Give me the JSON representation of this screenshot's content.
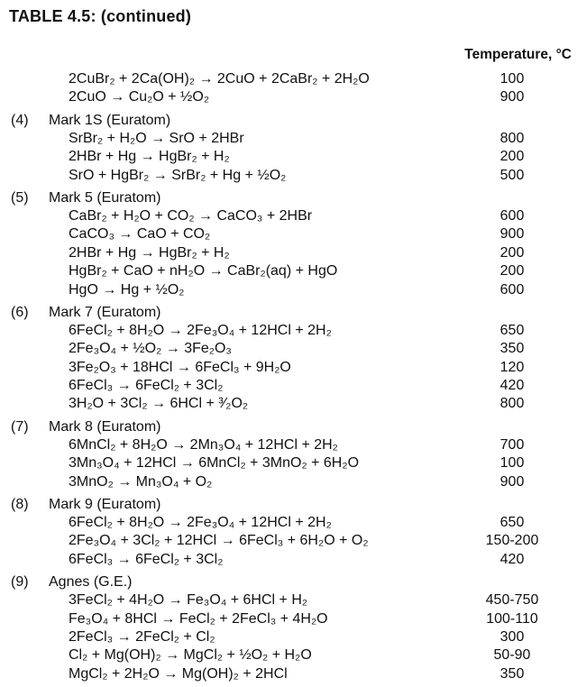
{
  "title": "TABLE 4.5:  (continued)",
  "column_header": "Temperature, °C",
  "groups": [
    {
      "number": "",
      "name": "",
      "rows": [
        {
          "reaction": "2CuBr₂ + 2Ca(OH)₂ → 2CuO + 2CaBr₂ + 2H₂O",
          "temperature": "100"
        },
        {
          "reaction": "2CuO → Cu₂O + ½O₂",
          "temperature": "900"
        }
      ]
    },
    {
      "number": "(4)",
      "name": "Mark 1S (Euratom)",
      "rows": [
        {
          "reaction": "SrBr₂ + H₂O → SrO + 2HBr",
          "temperature": "800"
        },
        {
          "reaction": "2HBr + Hg → HgBr₂ + H₂",
          "temperature": "200"
        },
        {
          "reaction": "SrO + HgBr₂ → SrBr₂ + Hg + ½O₂",
          "temperature": "500"
        }
      ]
    },
    {
      "number": "(5)",
      "name": "Mark 5 (Euratom)",
      "rows": [
        {
          "reaction": "CaBr₂ + H₂O + CO₂ → CaCO₃ + 2HBr",
          "temperature": "600"
        },
        {
          "reaction": "CaCO₃ → CaO + CO₂",
          "temperature": "900"
        },
        {
          "reaction": "2HBr + Hg → HgBr₂ + H₂",
          "temperature": "200"
        },
        {
          "reaction": "HgBr₂ + CaO + nH₂O → CaBr₂(aq) + HgO",
          "temperature": "200"
        },
        {
          "reaction": "HgO → Hg + ½O₂",
          "temperature": "600"
        }
      ]
    },
    {
      "number": "(6)",
      "name": "Mark 7 (Euratom)",
      "rows": [
        {
          "reaction": "6FeCl₂ + 8H₂O → 2Fe₃O₄ + 12HCl + 2H₂",
          "temperature": "650"
        },
        {
          "reaction": "2Fe₃O₄ + ½O₂ → 3Fe₂O₃",
          "temperature": "350"
        },
        {
          "reaction": "3Fe₂O₃ + 18HCl → 6FeCl₃ + 9H₂O",
          "temperature": "120"
        },
        {
          "reaction": "6FeCl₃ → 6FeCl₂ + 3Cl₂",
          "temperature": "420"
        },
        {
          "reaction": "3H₂O + 3Cl₂ → 6HCl + ³⁄₂O₂",
          "temperature": "800"
        }
      ]
    },
    {
      "number": "(7)",
      "name": "Mark 8 (Euratom)",
      "rows": [
        {
          "reaction": "6MnCl₂ + 8H₂O → 2Mn₃O₄ + 12HCl + 2H₂",
          "temperature": "700"
        },
        {
          "reaction": "3Mn₃O₄ + 12HCl → 6MnCl₂ + 3MnO₂ + 6H₂O",
          "temperature": "100"
        },
        {
          "reaction": "3MnO₂ → Mn₃O₄ + O₂",
          "temperature": "900"
        }
      ]
    },
    {
      "number": "(8)",
      "name": "Mark 9 (Euratom)",
      "rows": [
        {
          "reaction": "6FeCl₂ + 8H₂O → 2Fe₃O₄ + 12HCl + 2H₂",
          "temperature": "650"
        },
        {
          "reaction": "2Fe₃O₄ + 3Cl₂ + 12HCl → 6FeCl₃ + 6H₂O + O₂",
          "temperature": "150-200"
        },
        {
          "reaction": "6FeCl₃ → 6FeCl₂ + 3Cl₂",
          "temperature": "420"
        }
      ]
    },
    {
      "number": "(9)",
      "name": "Agnes (G.E.)",
      "rows": [
        {
          "reaction": "3FeCl₂ + 4H₂O → Fe₃O₄ + 6HCl + H₂",
          "temperature": "450-750"
        },
        {
          "reaction": "Fe₃O₄ + 8HCl → FeCl₂ + 2FeCl₃ + 4H₂O",
          "temperature": "100-110"
        },
        {
          "reaction": "2FeCl₃ → 2FeCl₂ + Cl₂",
          "temperature": "300"
        },
        {
          "reaction": "Cl₂ + Mg(OH)₂ → MgCl₂ + ½O₂ + H₂O",
          "temperature": "50-90"
        },
        {
          "reaction": "MgCl₂ + 2H₂O → Mg(OH)₂ + 2HCl",
          "temperature": "350"
        }
      ]
    }
  ]
}
